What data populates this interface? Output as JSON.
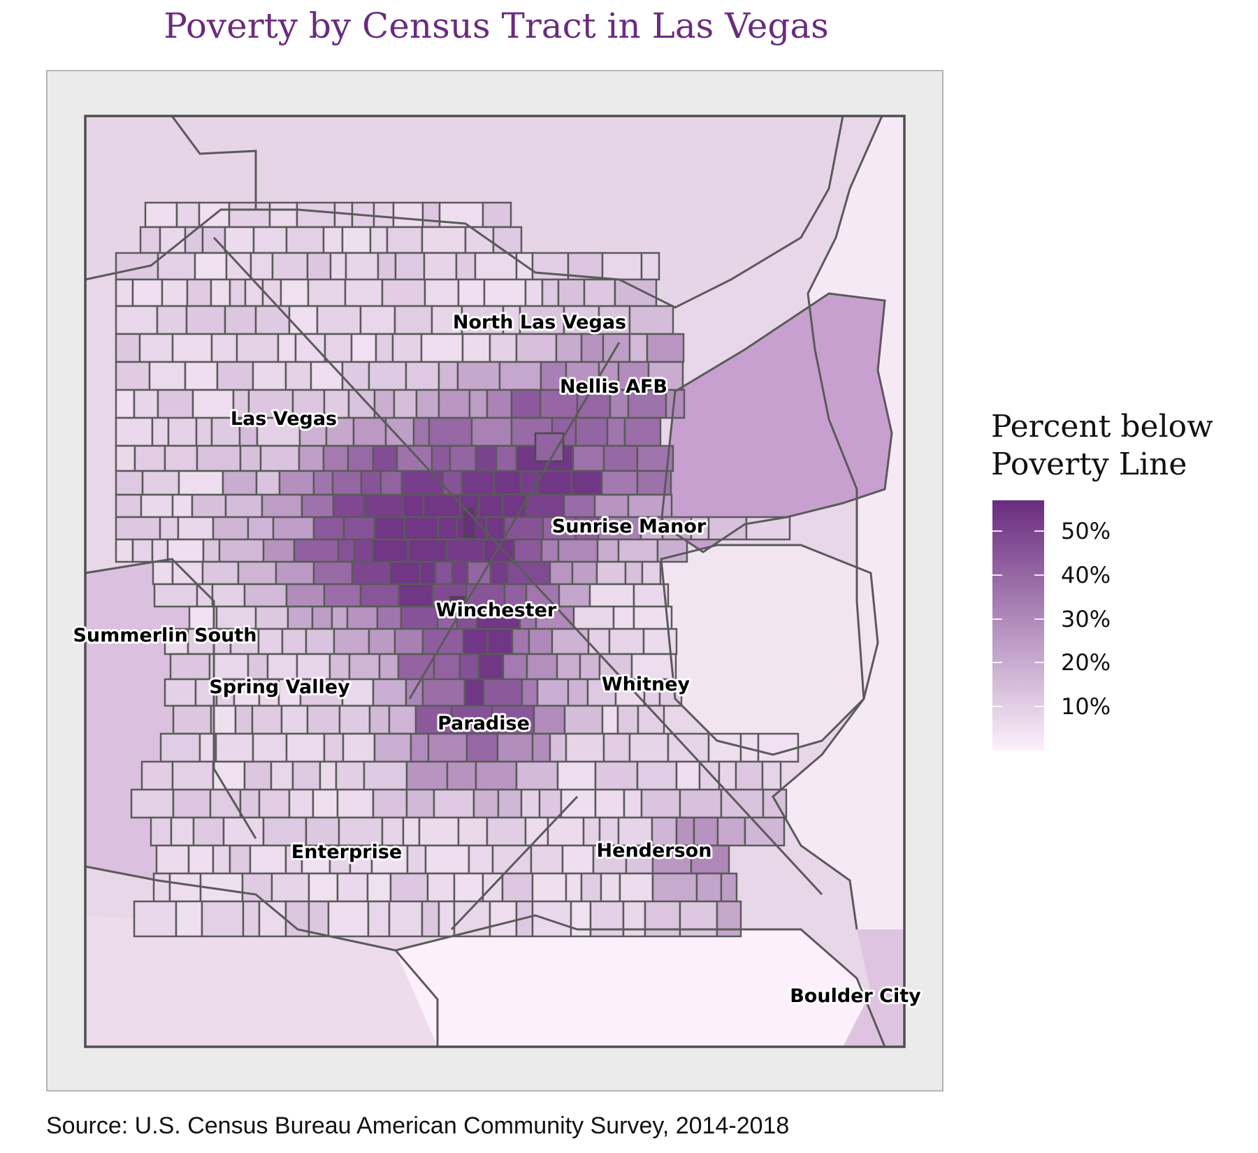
{
  "title": "Poverty by Census Tract in Las Vegas",
  "source": "Source: U.S. Census Bureau American Community Survey, 2014-2018",
  "legend": {
    "title_line1": "Percent below",
    "title_line2": "Poverty Line",
    "max_value": 57,
    "ticks": [
      {
        "value": 50,
        "label": "50%"
      },
      {
        "value": 40,
        "label": "40%"
      },
      {
        "value": 30,
        "label": "30%"
      },
      {
        "value": 20,
        "label": "20%"
      },
      {
        "value": 10,
        "label": "10%"
      }
    ],
    "color_low": "#fcf1fb",
    "color_high": "#6a2c7f"
  },
  "colors": {
    "title": "#6a2c7f",
    "border": "#5a5a5a",
    "panel_background": "#ebebeb"
  },
  "places": [
    {
      "name": "North Las Vegas"
    },
    {
      "name": "Nellis AFB"
    },
    {
      "name": "Las Vegas"
    },
    {
      "name": "Sunrise Manor"
    },
    {
      "name": "Winchester"
    },
    {
      "name": "Summerlin South"
    },
    {
      "name": "Spring Valley"
    },
    {
      "name": "Whitney"
    },
    {
      "name": "Paradise"
    },
    {
      "name": "Enterprise"
    },
    {
      "name": "Henderson"
    },
    {
      "name": "Boulder City"
    }
  ]
}
